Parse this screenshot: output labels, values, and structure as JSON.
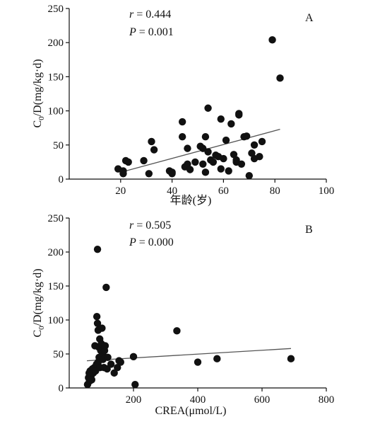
{
  "chart_data": [
    {
      "type": "scatter",
      "panel_label": "A",
      "annotation": {
        "r_symbol": "r",
        "r_value": " = 0.444",
        "p_symbol": "P",
        "p_value": " = 0.001"
      },
      "xlabel": "年龄(岁)",
      "ylabel": "C0/D(mg/kg·d)",
      "xlim": [
        0,
        100
      ],
      "ylim": [
        0,
        250
      ],
      "xticks": [
        20,
        40,
        60,
        80,
        100
      ],
      "yticks": [
        0,
        50,
        100,
        150,
        200,
        250
      ],
      "points": [
        [
          19,
          15
        ],
        [
          21,
          12
        ],
        [
          21,
          8
        ],
        [
          22,
          27
        ],
        [
          23,
          25
        ],
        [
          29,
          27
        ],
        [
          31,
          8
        ],
        [
          32,
          55
        ],
        [
          33,
          43
        ],
        [
          39,
          12
        ],
        [
          40,
          8
        ],
        [
          40,
          10
        ],
        [
          44,
          84
        ],
        [
          44,
          62
        ],
        [
          45,
          18
        ],
        [
          46,
          45
        ],
        [
          46,
          22
        ],
        [
          47,
          14
        ],
        [
          49,
          25
        ],
        [
          51,
          48
        ],
        [
          52,
          45
        ],
        [
          52,
          22
        ],
        [
          53,
          62
        ],
        [
          53,
          10
        ],
        [
          54,
          104
        ],
        [
          54,
          40
        ],
        [
          55,
          28
        ],
        [
          56,
          25
        ],
        [
          57,
          35
        ],
        [
          58,
          33
        ],
        [
          59,
          88
        ],
        [
          59,
          15
        ],
        [
          60,
          30
        ],
        [
          61,
          57
        ],
        [
          62,
          12
        ],
        [
          63,
          81
        ],
        [
          64,
          36
        ],
        [
          65,
          28
        ],
        [
          65,
          25
        ],
        [
          66,
          94
        ],
        [
          66,
          96
        ],
        [
          67,
          22
        ],
        [
          68,
          62
        ],
        [
          69,
          63
        ],
        [
          70,
          5
        ],
        [
          71,
          38
        ],
        [
          72,
          30
        ],
        [
          72,
          50
        ],
        [
          74,
          33
        ],
        [
          75,
          55
        ],
        [
          79,
          204
        ],
        [
          82,
          148
        ]
      ],
      "trendline": {
        "x": [
          20,
          82
        ],
        "y": [
          10,
          73
        ]
      }
    },
    {
      "type": "scatter",
      "panel_label": "B",
      "annotation": {
        "r_symbol": "r",
        "r_value": " = 0.505",
        "p_symbol": "P",
        "p_value": " = 0.000"
      },
      "xlabel": "CREA(μmol/L)",
      "ylabel": "C0/D(mg/kg·d)",
      "xlim": [
        0,
        800
      ],
      "ylim": [
        0,
        250
      ],
      "xticks": [
        200,
        400,
        600,
        800
      ],
      "yticks": [
        0,
        50,
        100,
        150,
        200,
        250
      ],
      "points": [
        [
          57,
          5
        ],
        [
          60,
          15
        ],
        [
          62,
          22
        ],
        [
          63,
          10
        ],
        [
          65,
          25
        ],
        [
          68,
          18
        ],
        [
          70,
          12
        ],
        [
          72,
          28
        ],
        [
          75,
          22
        ],
        [
          78,
          30
        ],
        [
          80,
          62
        ],
        [
          82,
          25
        ],
        [
          85,
          35
        ],
        [
          86,
          105
        ],
        [
          88,
          95
        ],
        [
          88,
          204
        ],
        [
          90,
          85
        ],
        [
          90,
          38
        ],
        [
          92,
          60
        ],
        [
          93,
          45
        ],
        [
          95,
          72
        ],
        [
          96,
          30
        ],
        [
          98,
          55
        ],
        [
          100,
          65
        ],
        [
          102,
          88
        ],
        [
          104,
          50
        ],
        [
          105,
          42
        ],
        [
          108,
          30
        ],
        [
          110,
          55
        ],
        [
          112,
          62
        ],
        [
          115,
          148
        ],
        [
          118,
          28
        ],
        [
          120,
          45
        ],
        [
          130,
          35
        ],
        [
          140,
          22
        ],
        [
          150,
          30
        ],
        [
          155,
          40
        ],
        [
          160,
          38
        ],
        [
          200,
          46
        ],
        [
          205,
          5
        ],
        [
          335,
          84
        ],
        [
          400,
          38
        ],
        [
          460,
          43
        ],
        [
          690,
          43
        ]
      ],
      "trendline": {
        "x": [
          55,
          690
        ],
        "y": [
          40,
          58
        ]
      }
    }
  ]
}
